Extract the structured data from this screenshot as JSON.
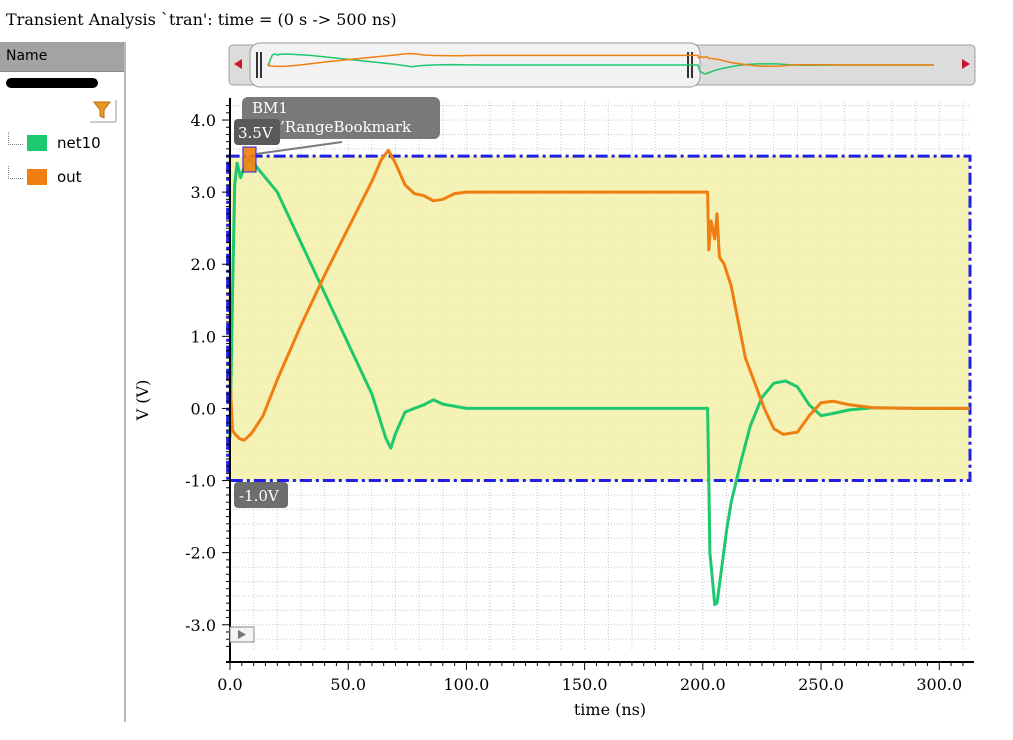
{
  "window": {
    "title": "Transient Analysis `tran': time = (0 s -> 500 ns)"
  },
  "sidebar": {
    "header": "Name",
    "filter_icon": "filter-funnel-icon",
    "signals": [
      {
        "name": "net10",
        "color": "#1ec86e"
      },
      {
        "name": "out",
        "color": "#f07e10"
      }
    ]
  },
  "overview": {
    "left_arrow_icon": "left-arrow-icon",
    "right_arrow_icon": "right-arrow-icon",
    "colors": {
      "track": "#dcdcdc",
      "thumb": "#f2f2f2",
      "arrow": "#d0142a"
    }
  },
  "chart_data": {
    "type": "line",
    "xlabel": "time (ns)",
    "ylabel": "V (V)",
    "xlim": [
      0,
      313
    ],
    "ylim": [
      -3.35,
      4.25
    ],
    "xticks": [
      0,
      50,
      100,
      150,
      200,
      250,
      300
    ],
    "xtick_labels": [
      "0.0",
      "50.0",
      "100.0",
      "150.0",
      "200.0",
      "250.0",
      "300.0"
    ],
    "yticks": [
      4,
      3,
      2,
      1,
      0,
      -1,
      -2,
      -3
    ],
    "ytick_labels": [
      "4.0",
      "3.0",
      "2.0",
      "1.0",
      "0.0",
      "-1.0",
      "-2.0",
      "-3.0"
    ],
    "grid": true,
    "series": [
      {
        "name": "net10",
        "color": "#1ec86e",
        "points": [
          [
            0,
            -0.4
          ],
          [
            1,
            1.5
          ],
          [
            2,
            3.1
          ],
          [
            3,
            3.4
          ],
          [
            4.5,
            3.2
          ],
          [
            6,
            3.35
          ],
          [
            8,
            3.45
          ],
          [
            10,
            3.4
          ],
          [
            20,
            3.0
          ],
          [
            40,
            1.6
          ],
          [
            50,
            0.9
          ],
          [
            60,
            0.2
          ],
          [
            66,
            -0.42
          ],
          [
            68,
            -0.55
          ],
          [
            70,
            -0.35
          ],
          [
            74,
            -0.05
          ],
          [
            78,
            0.0
          ],
          [
            82,
            0.05
          ],
          [
            86,
            0.12
          ],
          [
            90,
            0.06
          ],
          [
            100,
            0.0
          ],
          [
            150,
            0.0
          ],
          [
            200,
            0.0
          ],
          [
            202,
            0.0
          ],
          [
            202.5,
            -1.0
          ],
          [
            203,
            -2.0
          ],
          [
            204,
            -2.35
          ],
          [
            205,
            -2.72
          ],
          [
            206,
            -2.7
          ],
          [
            208,
            -2.2
          ],
          [
            210,
            -1.7
          ],
          [
            212,
            -1.3
          ],
          [
            216,
            -0.75
          ],
          [
            220,
            -0.25
          ],
          [
            225,
            0.15
          ],
          [
            230,
            0.35
          ],
          [
            235,
            0.38
          ],
          [
            240,
            0.3
          ],
          [
            245,
            0.05
          ],
          [
            250,
            -0.1
          ],
          [
            255,
            -0.07
          ],
          [
            262,
            -0.02
          ],
          [
            272,
            0.01
          ],
          [
            290,
            0.0
          ],
          [
            313,
            0.0
          ]
        ]
      },
      {
        "name": "out",
        "color": "#f07e10",
        "points": [
          [
            0,
            0.45
          ],
          [
            1,
            -0.3
          ],
          [
            2,
            -0.35
          ],
          [
            4,
            -0.42
          ],
          [
            6,
            -0.44
          ],
          [
            9,
            -0.35
          ],
          [
            14,
            -0.1
          ],
          [
            20,
            0.4
          ],
          [
            30,
            1.15
          ],
          [
            40,
            1.85
          ],
          [
            50,
            2.5
          ],
          [
            60,
            3.15
          ],
          [
            64,
            3.45
          ],
          [
            67,
            3.58
          ],
          [
            70,
            3.4
          ],
          [
            74,
            3.1
          ],
          [
            78,
            2.98
          ],
          [
            82,
            2.95
          ],
          [
            86,
            2.88
          ],
          [
            90,
            2.9
          ],
          [
            95,
            2.98
          ],
          [
            100,
            3.0
          ],
          [
            150,
            3.0
          ],
          [
            200,
            3.0
          ],
          [
            202,
            3.0
          ],
          [
            202.5,
            2.2
          ],
          [
            203.5,
            2.6
          ],
          [
            205,
            2.35
          ],
          [
            206,
            2.7
          ],
          [
            207,
            2.1
          ],
          [
            209,
            2.0
          ],
          [
            212,
            1.7
          ],
          [
            215,
            1.2
          ],
          [
            218,
            0.7
          ],
          [
            222,
            0.35
          ],
          [
            226,
            0.0
          ],
          [
            230,
            -0.28
          ],
          [
            234,
            -0.36
          ],
          [
            240,
            -0.33
          ],
          [
            245,
            -0.1
          ],
          [
            250,
            0.08
          ],
          [
            255,
            0.1
          ],
          [
            262,
            0.05
          ],
          [
            272,
            0.01
          ],
          [
            290,
            0.0
          ],
          [
            313,
            0.0
          ]
        ]
      }
    ],
    "bookmark": {
      "name": "BM1",
      "type_label": "RangeBookmark",
      "top_label": "3.5V",
      "bottom_label": "-1.0V",
      "x_range": [
        -1,
        313
      ],
      "y_range": [
        -1.0,
        3.5
      ],
      "fill": "#f2f0a8",
      "border": "#1f1fe6"
    }
  }
}
